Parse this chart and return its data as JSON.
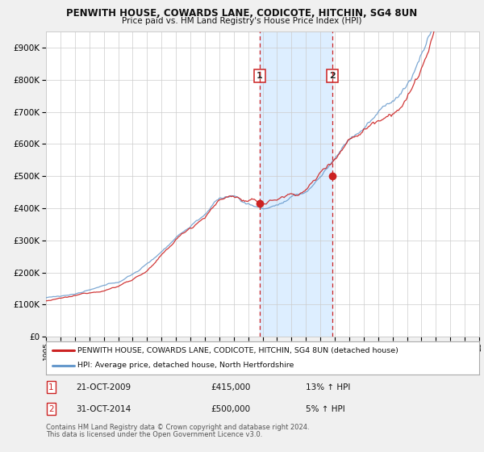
{
  "title": "PENWITH HOUSE, COWARDS LANE, CODICOTE, HITCHIN, SG4 8UN",
  "subtitle": "Price paid vs. HM Land Registry's House Price Index (HPI)",
  "hpi_label": "HPI: Average price, detached house, North Hertfordshire",
  "price_label": "PENWITH HOUSE, COWARDS LANE, CODICOTE, HITCHIN, SG4 8UN (detached house)",
  "sale1_date": "21-OCT-2009",
  "sale1_price": "£415,000",
  "sale1_hpi": "13% ↑ HPI",
  "sale1_year": 2009.8,
  "sale1_value": 415000,
  "sale2_date": "31-OCT-2014",
  "sale2_price": "£500,000",
  "sale2_hpi": "5% ↑ HPI",
  "sale2_year": 2014.83,
  "sale2_value": 500000,
  "background_color": "#f0f0f0",
  "plot_bg_color": "#ffffff",
  "red_color": "#cc2222",
  "blue_color": "#6699cc",
  "shade_color": "#ddeeff",
  "grid_color": "#cccccc",
  "footnote1": "Contains HM Land Registry data © Crown copyright and database right 2024.",
  "footnote2": "This data is licensed under the Open Government Licence v3.0.",
  "ylim_max": 950000,
  "ylim_min": 0,
  "start_year": 1995,
  "end_year": 2025
}
